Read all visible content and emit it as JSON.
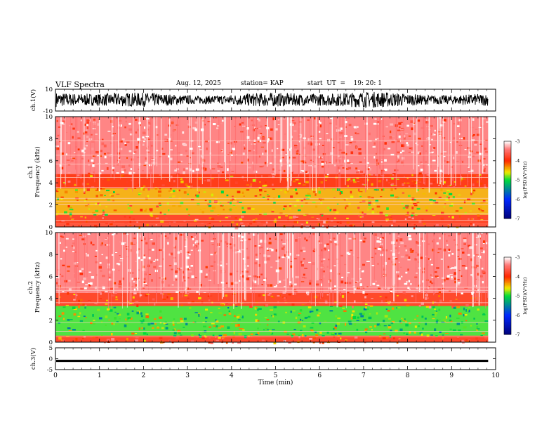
{
  "chart_data": [
    {
      "type": "line",
      "title": "VLF Spectra",
      "date": "Aug. 12, 2025",
      "station": "station= KAP",
      "start": "start  UT  =    19: 20: 1",
      "ylabel": "ch.1(V)",
      "ylim": [
        -10,
        10
      ],
      "y_ticks": [
        "10",
        "-10"
      ],
      "signal_range_v": [
        -7,
        8
      ],
      "xlim": [
        0,
        9.83
      ]
    },
    {
      "type": "heatmap",
      "ylabel": "ch.1 Frequency (kHz)",
      "ylim": [
        0,
        10
      ],
      "y_ticks": [
        "0",
        "2",
        "4",
        "6",
        "8",
        "10"
      ],
      "colorbar": {
        "label": "log(PSD)(V²/Hz)",
        "range": [
          -7,
          -3
        ],
        "ticks": [
          "-3",
          "-4",
          "-5",
          "-6",
          "-7"
        ]
      },
      "bands": [
        {
          "from_khz": 0,
          "to_khz": 0.3,
          "level": -3.8
        },
        {
          "from_khz": 0.3,
          "to_khz": 1.1,
          "level": -3.9
        },
        {
          "from_khz": 1.1,
          "to_khz": 3.5,
          "level": -4.4
        },
        {
          "from_khz": 3.5,
          "to_khz": 4.8,
          "level": -4.0
        },
        {
          "from_khz": 4.8,
          "to_khz": 10,
          "level": -3.4
        }
      ],
      "lines_khz": [
        0.6,
        1.2,
        2.0,
        2.3,
        2.6,
        3.6,
        4.5,
        5.7,
        6.5,
        7.8
      ]
    },
    {
      "type": "heatmap",
      "ylabel": "ch.2 Frequency (kHz)",
      "ylim": [
        0,
        10
      ],
      "y_ticks": [
        "0",
        "2",
        "4",
        "6",
        "8",
        "10"
      ],
      "colorbar": {
        "label": "log(PSD)(V²/Hz)",
        "range": [
          -7,
          -3
        ],
        "ticks": [
          "-3",
          "-4",
          "-5",
          "-6",
          "-7"
        ]
      },
      "bands": [
        {
          "from_khz": 0,
          "to_khz": 0.6,
          "level": -3.9
        },
        {
          "from_khz": 0.6,
          "to_khz": 3.3,
          "level": -4.9
        },
        {
          "from_khz": 3.3,
          "to_khz": 4.5,
          "level": -3.9
        },
        {
          "from_khz": 4.5,
          "to_khz": 10,
          "level": -3.4
        }
      ],
      "lines_khz": [
        0.5,
        1.0,
        1.8,
        3.6,
        4.7,
        5.0
      ]
    },
    {
      "type": "line",
      "ylabel": "ch.3(V)",
      "ylim": [
        -5,
        5
      ],
      "y_ticks": [
        "5",
        "0",
        "-5"
      ],
      "signal_range_v": [
        -1.5,
        -0.5
      ],
      "xlabel": "Time  (min)",
      "xlim": [
        0,
        10
      ],
      "x_ticks": [
        "0",
        "1",
        "2",
        "3",
        "4",
        "5",
        "6",
        "7",
        "8",
        "9",
        "10"
      ],
      "data_end_min": 9.83
    }
  ]
}
